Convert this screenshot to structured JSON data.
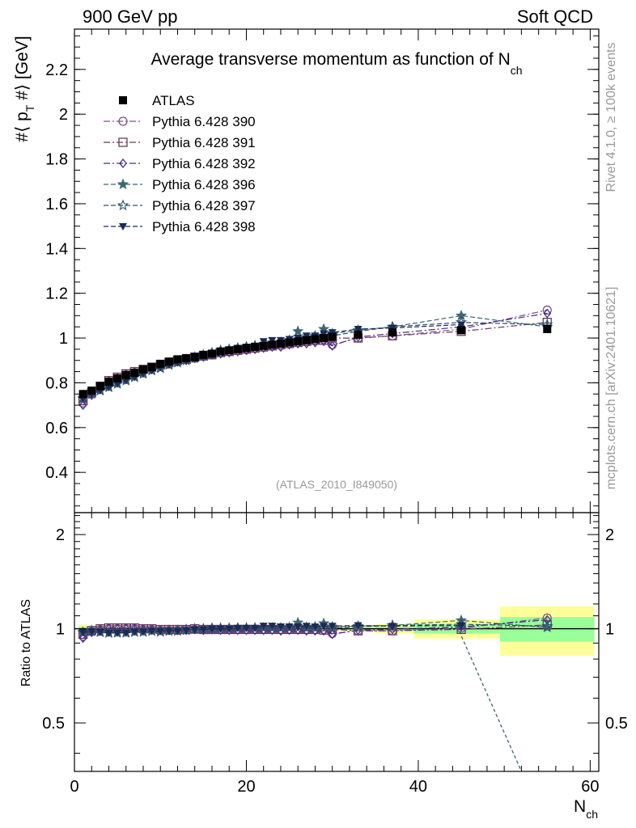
{
  "header": {
    "left_label": "900 GeV pp",
    "right_label": "Soft QCD"
  },
  "side": {
    "rivet_label": "Rivet 4.1.0, ≥ 100k events",
    "mcplots_label": "mcplots.cern.ch [arXiv:2401.10621]"
  },
  "chart_data": [
    {
      "type": "line",
      "panel": "main",
      "title": "Average transverse momentum as function of N",
      "title_sub": "ch",
      "ylabel": "#⟨ p",
      "ylabel_sub": "T",
      "ylabel_tail": " #⟩ [GeV]",
      "analysis_label": "(ATLAS_2010_I849050)",
      "xlim": [
        0,
        61
      ],
      "ylim": [
        0.22,
        2.38
      ],
      "yticks": [
        0.4,
        0.6,
        0.8,
        1,
        1.2,
        1.4,
        1.6,
        1.8,
        2,
        2.2
      ],
      "ytick_labels": [
        "0.4",
        "0.6",
        "0.8",
        "1",
        "1.2",
        "1.4",
        "1.6",
        "1.8",
        "2",
        "2.2"
      ],
      "legend_position": "top-left",
      "data": {
        "name": "ATLAS",
        "x": [
          1,
          2,
          3,
          4,
          5,
          6,
          7,
          8,
          9,
          10,
          11,
          12,
          13,
          14,
          15,
          16,
          17,
          18,
          19,
          20,
          21,
          22,
          23,
          24,
          25,
          26,
          27,
          28,
          29,
          30,
          33,
          37,
          45,
          55
        ],
        "y": [
          0.75,
          0.765,
          0.785,
          0.805,
          0.82,
          0.835,
          0.845,
          0.86,
          0.87,
          0.885,
          0.895,
          0.905,
          0.91,
          0.915,
          0.925,
          0.93,
          0.94,
          0.945,
          0.95,
          0.955,
          0.96,
          0.965,
          0.97,
          0.975,
          0.98,
          0.985,
          0.99,
          0.995,
          1.0,
          1.005,
          1.015,
          1.025,
          1.035,
          1.04
        ]
      },
      "series": [
        {
          "name": "Pythia 6.428 390",
          "color": "#7f4f8a",
          "marker": "circle-open",
          "dash": "dashdot",
          "x": [
            1,
            2,
            3,
            4,
            5,
            6,
            7,
            8,
            9,
            10,
            11,
            12,
            13,
            14,
            15,
            16,
            17,
            18,
            19,
            20,
            21,
            22,
            23,
            24,
            25,
            26,
            27,
            28,
            29,
            30,
            33,
            37,
            45,
            55
          ],
          "y": [
            0.71,
            0.75,
            0.78,
            0.805,
            0.82,
            0.835,
            0.845,
            0.855,
            0.865,
            0.875,
            0.885,
            0.895,
            0.905,
            0.91,
            0.92,
            0.925,
            0.935,
            0.94,
            0.945,
            0.95,
            0.955,
            0.96,
            0.965,
            0.97,
            0.975,
            0.98,
            0.985,
            0.99,
            0.995,
            0.97,
            1.0,
            1.01,
            1.04,
            1.125
          ]
        },
        {
          "name": "Pythia 6.428 391",
          "color": "#6b3a5a",
          "marker": "square-open",
          "dash": "dashdot",
          "x": [
            1,
            2,
            3,
            4,
            5,
            6,
            7,
            8,
            9,
            10,
            11,
            12,
            13,
            14,
            15,
            16,
            17,
            18,
            19,
            20,
            21,
            22,
            23,
            24,
            25,
            26,
            27,
            28,
            29,
            30,
            33,
            37,
            45,
            55
          ],
          "y": [
            0.72,
            0.755,
            0.785,
            0.81,
            0.825,
            0.84,
            0.85,
            0.86,
            0.87,
            0.88,
            0.89,
            0.9,
            0.905,
            0.915,
            0.92,
            0.925,
            0.935,
            0.94,
            0.945,
            0.95,
            0.955,
            0.96,
            0.965,
            0.97,
            0.975,
            0.98,
            0.985,
            0.99,
            0.99,
            1.0,
            1.0,
            1.01,
            1.03,
            1.07
          ]
        },
        {
          "name": "Pythia 6.428 392",
          "color": "#4a2a8c",
          "marker": "diamond-open",
          "dash": "dashdot",
          "x": [
            1,
            2,
            3,
            4,
            5,
            6,
            7,
            8,
            9,
            10,
            11,
            12,
            13,
            14,
            15,
            16,
            17,
            18,
            19,
            20,
            21,
            22,
            23,
            24,
            25,
            26,
            27,
            28,
            29,
            30,
            33,
            37,
            45,
            55
          ],
          "y": [
            0.7,
            0.745,
            0.78,
            0.805,
            0.82,
            0.835,
            0.845,
            0.855,
            0.865,
            0.875,
            0.885,
            0.895,
            0.9,
            0.91,
            0.915,
            0.925,
            0.93,
            0.935,
            0.94,
            0.945,
            0.95,
            0.955,
            0.96,
            0.96,
            0.97,
            0.975,
            0.975,
            0.98,
            0.985,
            0.965,
            1.005,
            1.02,
            1.05,
            1.11
          ]
        },
        {
          "name": "Pythia 6.428 396",
          "color": "#3d6670",
          "marker": "star-filled",
          "dash": "dashed",
          "x": [
            1,
            2,
            3,
            4,
            5,
            6,
            7,
            8,
            9,
            10,
            11,
            12,
            13,
            14,
            15,
            16,
            17,
            18,
            19,
            20,
            21,
            22,
            23,
            24,
            25,
            26,
            27,
            28,
            29,
            30,
            33,
            37,
            45,
            55
          ],
          "y": [
            0.73,
            0.755,
            0.77,
            0.785,
            0.8,
            0.815,
            0.83,
            0.845,
            0.86,
            0.87,
            0.885,
            0.895,
            0.905,
            0.915,
            0.925,
            0.935,
            0.945,
            0.95,
            0.955,
            0.96,
            0.965,
            0.97,
            0.975,
            0.98,
            0.99,
            1.03,
            1.0,
            1.01,
            1.04,
            1.02,
            1.035,
            1.05,
            1.1,
            1.05
          ]
        },
        {
          "name": "Pythia 6.428 397",
          "color": "#2f4f6b",
          "marker": "star-open",
          "dash": "dashed",
          "x": [
            1,
            2,
            3,
            4,
            5,
            6,
            7,
            8,
            9,
            10,
            11,
            12,
            13,
            14,
            15,
            16,
            17,
            18,
            19,
            20,
            21,
            22,
            23,
            24,
            25,
            26,
            27,
            28,
            29,
            30,
            33,
            37,
            45,
            55
          ],
          "y": [
            0.73,
            0.75,
            0.765,
            0.78,
            0.795,
            0.81,
            0.825,
            0.84,
            0.855,
            0.865,
            0.88,
            0.89,
            0.9,
            0.91,
            0.92,
            0.93,
            0.94,
            0.945,
            0.955,
            0.96,
            0.965,
            0.97,
            0.975,
            0.98,
            0.985,
            0.99,
            0.995,
            1.0,
            1.005,
            1.01,
            1.03,
            1.05,
            1.07,
            1.06
          ]
        },
        {
          "name": "Pythia 6.428 398",
          "color": "#1c2a55",
          "marker": "triangle-down-filled",
          "dash": "dashed",
          "x": [
            1,
            2,
            3,
            4,
            5,
            6,
            7,
            8,
            9,
            10,
            11,
            12,
            13,
            14,
            15,
            16,
            17,
            18,
            19,
            20,
            21,
            22,
            23,
            24,
            25,
            26,
            27,
            28,
            29,
            30,
            33,
            37,
            45
          ],
          "y": [
            0.73,
            0.75,
            0.765,
            0.78,
            0.795,
            0.81,
            0.825,
            0.84,
            0.855,
            0.87,
            0.88,
            0.89,
            0.9,
            0.91,
            0.92,
            0.93,
            0.94,
            0.945,
            0.955,
            0.96,
            0.965,
            0.985,
            0.99,
            0.99,
            0.995,
            1.0,
            1.01,
            1.01,
            1.02,
            1.025,
            1.04,
            1.045,
            1.06
          ]
        }
      ]
    },
    {
      "type": "line",
      "panel": "ratio",
      "ylabel": "Ratio to ATLAS",
      "xlabel": "N",
      "xlabel_sub": "ch",
      "xlim": [
        0,
        61
      ],
      "ylim": [
        0.35,
        2.35
      ],
      "xticks": [
        0,
        20,
        40,
        60
      ],
      "xtick_labels": [
        "0",
        "20",
        "40",
        "60"
      ],
      "yticks": [
        0.5,
        1,
        2
      ],
      "ytick_labels": [
        "0.5",
        "1",
        "2"
      ],
      "uncertainty_bands": [
        {
          "x0": 0.5,
          "x1": 1.5,
          "inner": [
            0.985,
            1.015
          ],
          "outer": [
            0.97,
            1.03
          ]
        },
        {
          "x0": 1.5,
          "x1": 35,
          "inner": [
            0.99,
            1.01
          ],
          "outer": [
            0.985,
            1.015
          ]
        },
        {
          "x0": 35,
          "x1": 39.5,
          "inner": [
            0.985,
            1.015
          ],
          "outer": [
            0.965,
            1.035
          ]
        },
        {
          "x0": 39.5,
          "x1": 49.5,
          "inner": [
            0.965,
            1.035
          ],
          "outer": [
            0.93,
            1.07
          ]
        },
        {
          "x0": 49.5,
          "x1": 60.5,
          "inner": [
            0.91,
            1.09
          ],
          "outer": [
            0.82,
            1.18
          ]
        }
      ],
      "ratio_dropoff": {
        "x": [
          44.5,
          52
        ],
        "y": [
          1.02,
          0.35
        ]
      }
    }
  ]
}
